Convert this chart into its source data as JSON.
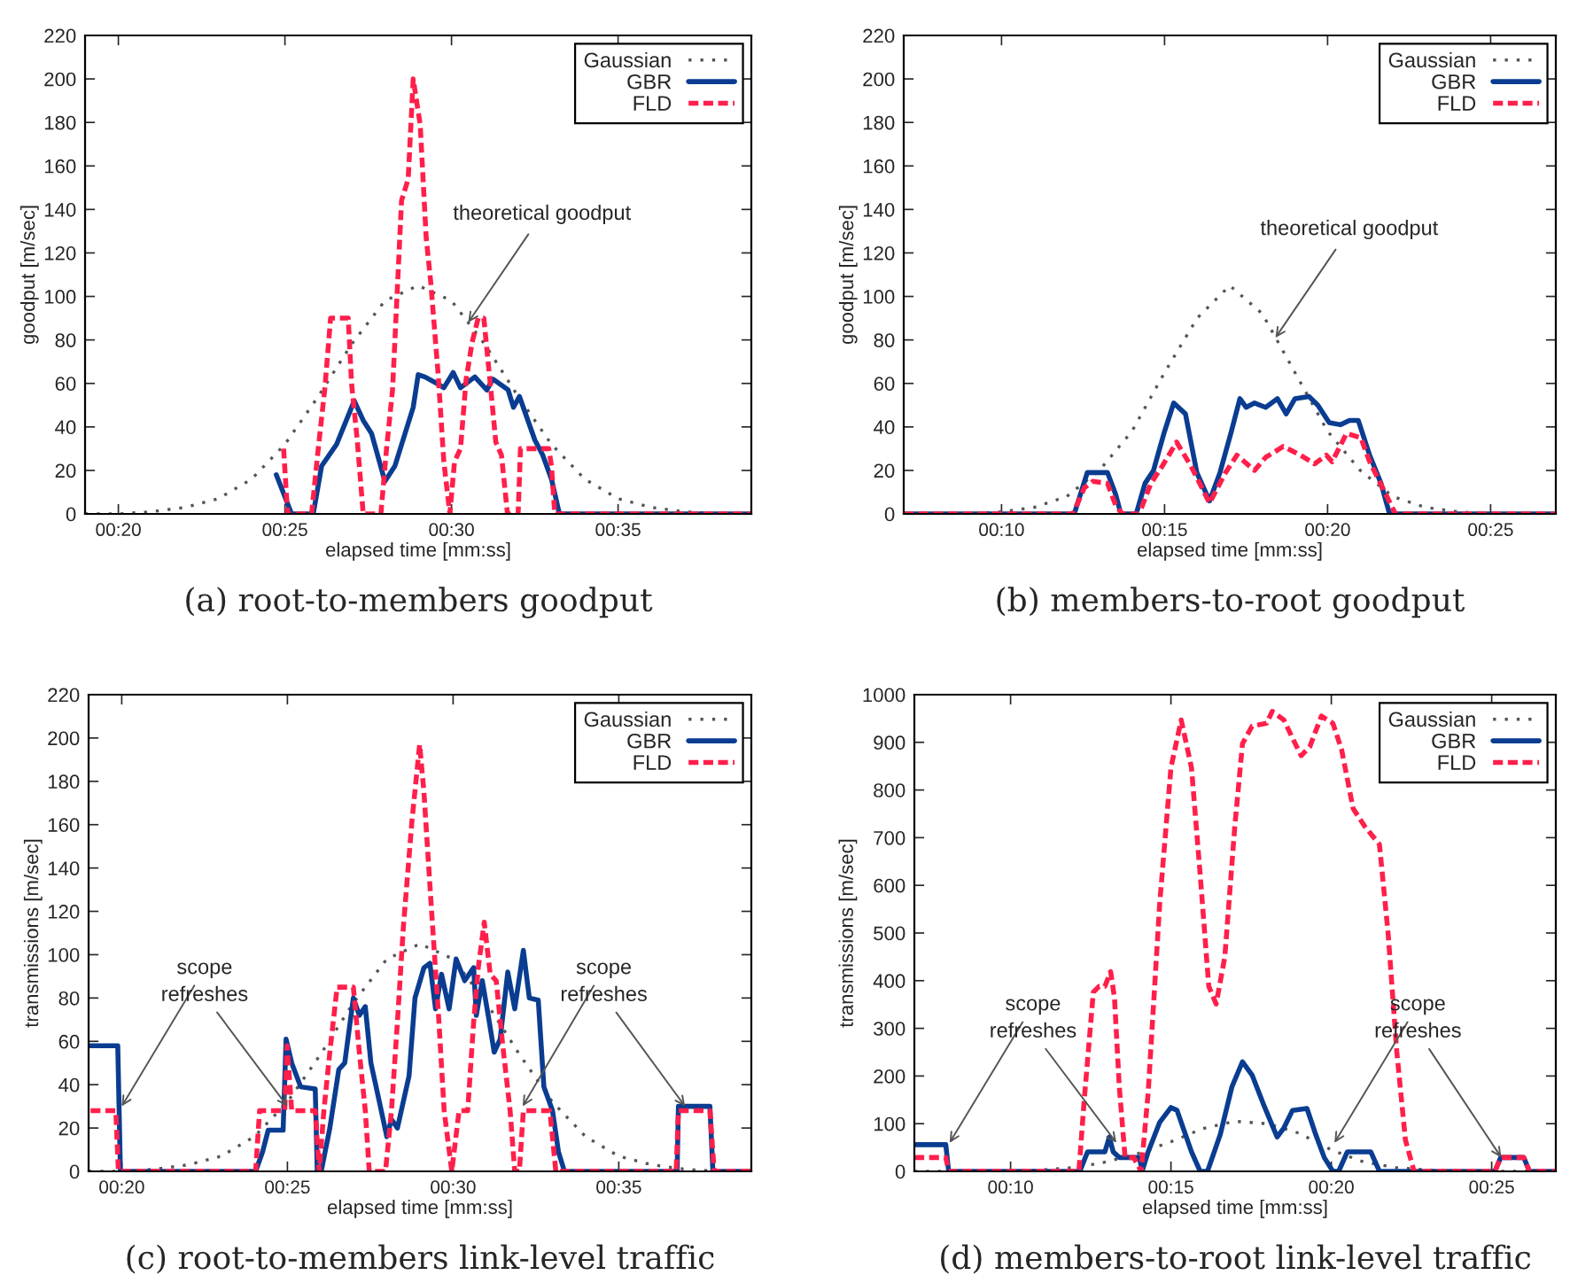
{
  "chart_data": [
    {
      "type": "line",
      "title": "(a) root-to-members goodput",
      "xlabel": "elapsed time [mm:ss]",
      "ylabel": "goodput [m/sec]",
      "xlim": [
        19,
        39
      ],
      "xticks": [
        {
          "value": 20,
          "label": "00:20"
        },
        {
          "value": 25,
          "label": "00:25"
        },
        {
          "value": 30,
          "label": "00:30"
        },
        {
          "value": 35,
          "label": "00:35"
        }
      ],
      "ylim": [
        0,
        220
      ],
      "yticks": [
        0,
        20,
        40,
        60,
        80,
        100,
        120,
        140,
        160,
        180,
        200,
        220
      ],
      "legend": "top right",
      "annotations": [
        {
          "text": "theoretical goodput",
          "x": 30.5,
          "y": 88
        }
      ],
      "series": [
        {
          "name": "Gaussian",
          "color": "#555555",
          "line_style": "dotted",
          "x": [
            19,
            20,
            21,
            22,
            23,
            24,
            25,
            26,
            27,
            28,
            29,
            30,
            31,
            32,
            33,
            34,
            35,
            36,
            37,
            38,
            39
          ],
          "values": [
            0,
            0,
            1,
            3,
            7,
            16,
            32,
            54,
            78,
            98,
            105,
            98,
            78,
            54,
            32,
            16,
            7,
            3,
            1,
            0,
            0
          ]
        },
        {
          "name": "GBR",
          "color": "#0a3d91",
          "line_style": "solid",
          "x": [
            24.74,
            25.2,
            25.85,
            26.1,
            26.55,
            27.08,
            27.35,
            27.6,
            28.0,
            28.3,
            28.85,
            29.0,
            29.2,
            29.56,
            29.77,
            30.05,
            30.27,
            30.7,
            31.06,
            31.24,
            31.7,
            31.86,
            32.04,
            32.5,
            32.74,
            33.0,
            33.24,
            39
          ],
          "values": [
            18,
            0,
            0,
            22,
            32,
            52,
            43,
            37,
            15,
            22,
            49,
            64,
            63,
            60,
            58,
            65,
            58,
            63,
            57,
            62,
            57,
            49,
            54,
            34,
            27,
            16,
            0,
            0
          ]
        },
        {
          "name": "FLD",
          "color": "#ff1f4b",
          "line_style": "dashed",
          "x": [
            24.96,
            25.08,
            25.8,
            26.0,
            26.2,
            26.37,
            26.9,
            27.0,
            27.17,
            27.35,
            27.88,
            28.05,
            28.23,
            28.5,
            28.7,
            28.85,
            29.06,
            29.24,
            29.38,
            29.6,
            29.77,
            29.95,
            30.09,
            30.27,
            30.44,
            30.62,
            30.8,
            30.97,
            31.15,
            31.33,
            31.5,
            31.68,
            32.0,
            32.07,
            32.92,
            33.0,
            33.1,
            39
          ],
          "values": [
            30,
            0,
            0,
            30,
            58,
            90,
            90,
            60,
            34,
            0,
            0,
            30,
            57,
            144,
            154,
            200,
            179,
            127,
            106,
            64,
            24,
            0,
            24,
            30,
            62,
            79,
            90,
            90,
            62,
            33,
            27,
            0,
            0,
            30,
            30,
            22,
            0,
            0
          ]
        }
      ]
    },
    {
      "type": "line",
      "title": "(b) members-to-root goodput",
      "xlabel": "elapsed time [mm:ss]",
      "ylabel": "goodput [m/sec]",
      "xlim": [
        7,
        27
      ],
      "xticks": [
        {
          "value": 10,
          "label": "00:10"
        },
        {
          "value": 15,
          "label": "00:15"
        },
        {
          "value": 20,
          "label": "00:20"
        },
        {
          "value": 25,
          "label": "00:25"
        }
      ],
      "ylim": [
        0,
        220
      ],
      "yticks": [
        0,
        20,
        40,
        60,
        80,
        100,
        120,
        140,
        160,
        180,
        200,
        220
      ],
      "legend": "top right",
      "annotations": [
        {
          "text": "theoretical goodput",
          "x": 18.4,
          "y": 81
        }
      ],
      "series": [
        {
          "name": "Gaussian",
          "color": "#555555",
          "line_style": "dotted",
          "x": [
            7,
            8,
            9,
            10,
            11,
            12,
            13,
            14,
            15,
            16,
            17,
            18,
            19,
            20,
            21,
            22,
            23,
            24,
            25,
            26,
            27
          ],
          "values": [
            0,
            0,
            0,
            1,
            3,
            8,
            20,
            38,
            65,
            90,
            105,
            92,
            65,
            38,
            20,
            8,
            3,
            1,
            0,
            0,
            0
          ]
        },
        {
          "name": "GBR",
          "color": "#0a3d91",
          "line_style": "solid",
          "x": [
            7,
            12.23,
            12.63,
            13.25,
            13.5,
            13.66,
            14.13,
            14.4,
            14.66,
            14.98,
            15.28,
            15.64,
            15.99,
            16.38,
            16.7,
            17.05,
            17.31,
            17.5,
            17.76,
            18.1,
            18.46,
            18.73,
            19.0,
            19.43,
            19.7,
            20.05,
            20.4,
            20.67,
            20.94,
            21.29,
            21.64,
            21.9,
            27
          ],
          "values": [
            0,
            0,
            19,
            19,
            9,
            0,
            0,
            14,
            20,
            37,
            51,
            46,
            19,
            6,
            19,
            38,
            53,
            49,
            51,
            49,
            53,
            46,
            53,
            54,
            50,
            42,
            41,
            43,
            43,
            27,
            14,
            0,
            0
          ]
        },
        {
          "name": "FLD",
          "color": "#ff1f4b",
          "line_style": "dashed",
          "x": [
            7,
            12.19,
            12.54,
            12.8,
            13.25,
            13.5,
            13.7,
            14.22,
            14.58,
            14.93,
            15.37,
            15.81,
            16.38,
            16.87,
            17.22,
            17.76,
            18.1,
            18.64,
            19.17,
            19.6,
            19.96,
            20.14,
            20.58,
            21.02,
            21.29,
            21.82,
            22.08,
            27
          ],
          "values": [
            0,
            0,
            12,
            15,
            14,
            4,
            0,
            0,
            14,
            22,
            33,
            22,
            5,
            19,
            27,
            20,
            26,
            31,
            27,
            23,
            27,
            24,
            37,
            35,
            24,
            8,
            0,
            0
          ]
        }
      ]
    },
    {
      "type": "line",
      "title": "(c) root-to-members link-level traffic",
      "xlabel": "elapsed time [mm:ss]",
      "ylabel": "transmissions [m/sec]",
      "xlim": [
        19,
        39
      ],
      "xticks": [
        {
          "value": 20,
          "label": "00:20"
        },
        {
          "value": 25,
          "label": "00:25"
        },
        {
          "value": 30,
          "label": "00:30"
        },
        {
          "value": 35,
          "label": "00:35"
        }
      ],
      "ylim": [
        0,
        220
      ],
      "yticks": [
        0,
        20,
        40,
        60,
        80,
        100,
        120,
        140,
        160,
        180,
        200,
        220
      ],
      "legend": "top right",
      "annotations": [
        {
          "text": "scope",
          "x": 20,
          "y": 30
        },
        {
          "text": "refreshes",
          "x": 25,
          "y": 30
        },
        {
          "text": "scope",
          "x": 32.1,
          "y": 30
        },
        {
          "text": "refreshes",
          "x": 37,
          "y": 30
        }
      ],
      "series": [
        {
          "name": "Gaussian",
          "color": "#555555",
          "line_style": "dotted",
          "x": [
            19,
            20,
            21,
            22,
            23,
            24,
            25,
            26,
            27,
            28,
            29,
            30,
            31,
            32,
            33,
            34,
            35,
            36,
            37,
            38,
            39
          ],
          "values": [
            0,
            0,
            1,
            3,
            7,
            16,
            32,
            54,
            78,
            98,
            105,
            98,
            78,
            54,
            32,
            16,
            7,
            3,
            1,
            0,
            0
          ]
        },
        {
          "name": "GBR",
          "color": "#0a3d91",
          "line_style": "solid",
          "x": [
            19.06,
            19.88,
            19.96,
            24.04,
            24.25,
            24.42,
            24.87,
            24.96,
            25.13,
            25.4,
            25.84,
            25.9,
            26.02,
            26.28,
            26.55,
            26.73,
            26.99,
            27.17,
            27.35,
            27.52,
            27.79,
            28.0,
            28.14,
            28.32,
            28.67,
            28.85,
            29.12,
            29.3,
            29.47,
            29.65,
            29.88,
            30.09,
            30.35,
            30.62,
            30.7,
            30.88,
            31.06,
            31.24,
            31.42,
            31.65,
            31.86,
            32.12,
            32.3,
            32.57,
            32.74,
            33.0,
            33.18,
            33.36,
            36.76,
            36.8,
            37.75,
            37.84,
            39
          ],
          "values": [
            58,
            58,
            0,
            0,
            9,
            19,
            19,
            61,
            50,
            39,
            38,
            0,
            0,
            20,
            47,
            50,
            80,
            72,
            76,
            50,
            31,
            16,
            24,
            20,
            44,
            80,
            94,
            96,
            75,
            91,
            75,
            98,
            88,
            94,
            72,
            88,
            72,
            55,
            61,
            92,
            75,
            102,
            80,
            79,
            39,
            28,
            9,
            0,
            0,
            30,
            30,
            0,
            0
          ]
        },
        {
          "name": "FLD",
          "color": "#ff1f4b",
          "line_style": "dashed",
          "x": [
            19.06,
            19.82,
            19.9,
            24.04,
            24.16,
            24.92,
            24.99,
            25.13,
            25.84,
            25.96,
            26.1,
            26.28,
            26.5,
            26.99,
            27.17,
            27.35,
            27.47,
            27.96,
            28.14,
            28.32,
            28.5,
            28.76,
            28.99,
            29.12,
            29.3,
            29.56,
            29.73,
            29.96,
            30.18,
            30.44,
            30.62,
            30.76,
            30.94,
            31.12,
            31.3,
            31.5,
            31.72,
            31.86,
            32.0,
            32.12,
            32.92,
            33.1,
            36.73,
            36.8,
            37.75,
            37.88,
            39
          ],
          "values": [
            28,
            28,
            0,
            0,
            28,
            28,
            58,
            28,
            28,
            0,
            28,
            55,
            85,
            85,
            55,
            28,
            0,
            0,
            28,
            69,
            113,
            162,
            197,
            175,
            132,
            72,
            28,
            0,
            28,
            28,
            69,
            94,
            115,
            91,
            88,
            58,
            28,
            0,
            0,
            28,
            28,
            0,
            0,
            28,
            28,
            0,
            0
          ]
        }
      ]
    },
    {
      "type": "line",
      "title": "(d) members-to-root link-level traffic",
      "xlabel": "elapsed time [mm:ss]",
      "ylabel": "transmissions [m/sec]",
      "xlim": [
        7,
        27
      ],
      "xticks": [
        {
          "value": 10,
          "label": "00:10"
        },
        {
          "value": 15,
          "label": "00:15"
        },
        {
          "value": 20,
          "label": "00:20"
        },
        {
          "value": 25,
          "label": "00:25"
        }
      ],
      "ylim": [
        0,
        1000
      ],
      "yticks": [
        0,
        100,
        200,
        300,
        400,
        500,
        600,
        700,
        800,
        900,
        1000
      ],
      "legend": "top right",
      "annotations": [
        {
          "text": "scope",
          "x": 8.1,
          "y": 60
        },
        {
          "text": "refreshes",
          "x": 13.3,
          "y": 60
        },
        {
          "text": "scope",
          "x": 20.1,
          "y": 60
        },
        {
          "text": "refreshes",
          "x": 25.3,
          "y": 29
        }
      ],
      "series": [
        {
          "name": "Gaussian",
          "color": "#555555",
          "line_style": "dotted",
          "x": [
            7,
            8,
            9,
            10,
            11,
            12,
            13,
            14,
            15,
            16,
            17,
            18,
            19,
            20,
            21,
            22,
            23,
            24,
            25,
            26,
            27
          ],
          "values": [
            0,
            0,
            0,
            1,
            3,
            8,
            20,
            38,
            62,
            90,
            105,
            100,
            80,
            45,
            20,
            8,
            3,
            1,
            0,
            0,
            0
          ]
        },
        {
          "name": "GBR",
          "color": "#0a3d91",
          "line_style": "solid",
          "x": [
            7.0,
            7.98,
            8.07,
            12.16,
            12.4,
            12.94,
            13.08,
            13.2,
            13.39,
            14.02,
            14.1,
            14.29,
            14.65,
            15.0,
            15.19,
            15.64,
            15.91,
            16.14,
            16.54,
            16.9,
            17.23,
            17.53,
            17.89,
            18.31,
            18.52,
            18.79,
            19.24,
            19.51,
            19.78,
            20.05,
            20.23,
            20.5,
            21.23,
            21.5,
            25.1,
            25.28,
            26.0,
            26.18,
            27
          ],
          "values": [
            56,
            56,
            0,
            0,
            41,
            41,
            72,
            41,
            29,
            29,
            0,
            41,
            103,
            134,
            128,
            41,
            0,
            0,
            78,
            177,
            230,
            202,
            140,
            72,
            91,
            128,
            132,
            78,
            29,
            0,
            0,
            41,
            41,
            0,
            0,
            29,
            29,
            0,
            0
          ]
        },
        {
          "name": "FLD",
          "color": "#ff1f4b",
          "line_style": "dashed",
          "x": [
            7.0,
            7.98,
            8.07,
            12.13,
            12.3,
            12.58,
            12.76,
            12.94,
            13.12,
            13.24,
            13.39,
            13.57,
            13.84,
            14.07,
            14.29,
            14.65,
            15.0,
            15.32,
            15.64,
            15.91,
            16.18,
            16.41,
            16.68,
            16.99,
            17.23,
            17.53,
            17.98,
            18.16,
            18.52,
            18.79,
            19.06,
            19.33,
            19.69,
            20.05,
            20.32,
            20.68,
            21.05,
            21.5,
            21.77,
            22.04,
            22.31,
            22.58,
            25.1,
            25.28,
            26.0,
            26.18,
            27
          ],
          "values": [
            29,
            29,
            0,
            0,
            153,
            376,
            388,
            388,
            419,
            364,
            177,
            29,
            29,
            0,
            165,
            562,
            847,
            947,
            847,
            624,
            388,
            351,
            450,
            723,
            897,
            934,
            940,
            965,
            947,
            909,
            872,
            891,
            955,
            940,
            885,
            761,
            723,
            686,
            500,
            252,
            66,
            0,
            0,
            29,
            29,
            0,
            0
          ]
        }
      ]
    }
  ]
}
